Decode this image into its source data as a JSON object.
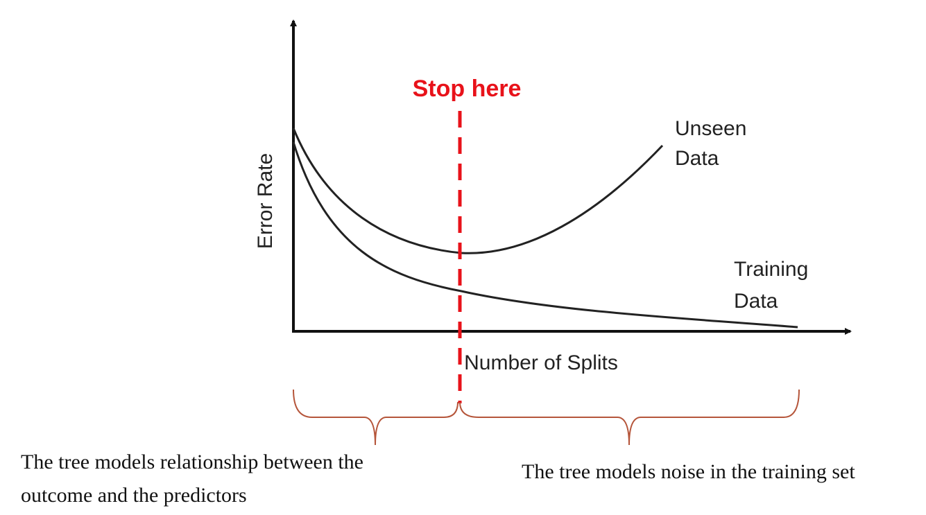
{
  "axes": {
    "y_label": "Error Rate",
    "x_label": "Number of Splits"
  },
  "curves": {
    "unseen": [
      "Unseen",
      "Data"
    ],
    "training": [
      "Training",
      "Data"
    ]
  },
  "marker": "Stop here",
  "captions": {
    "left": [
      "The tree models relationship between the",
      "outcome and the predictors"
    ],
    "right": "The tree models noise in the training set"
  }
}
